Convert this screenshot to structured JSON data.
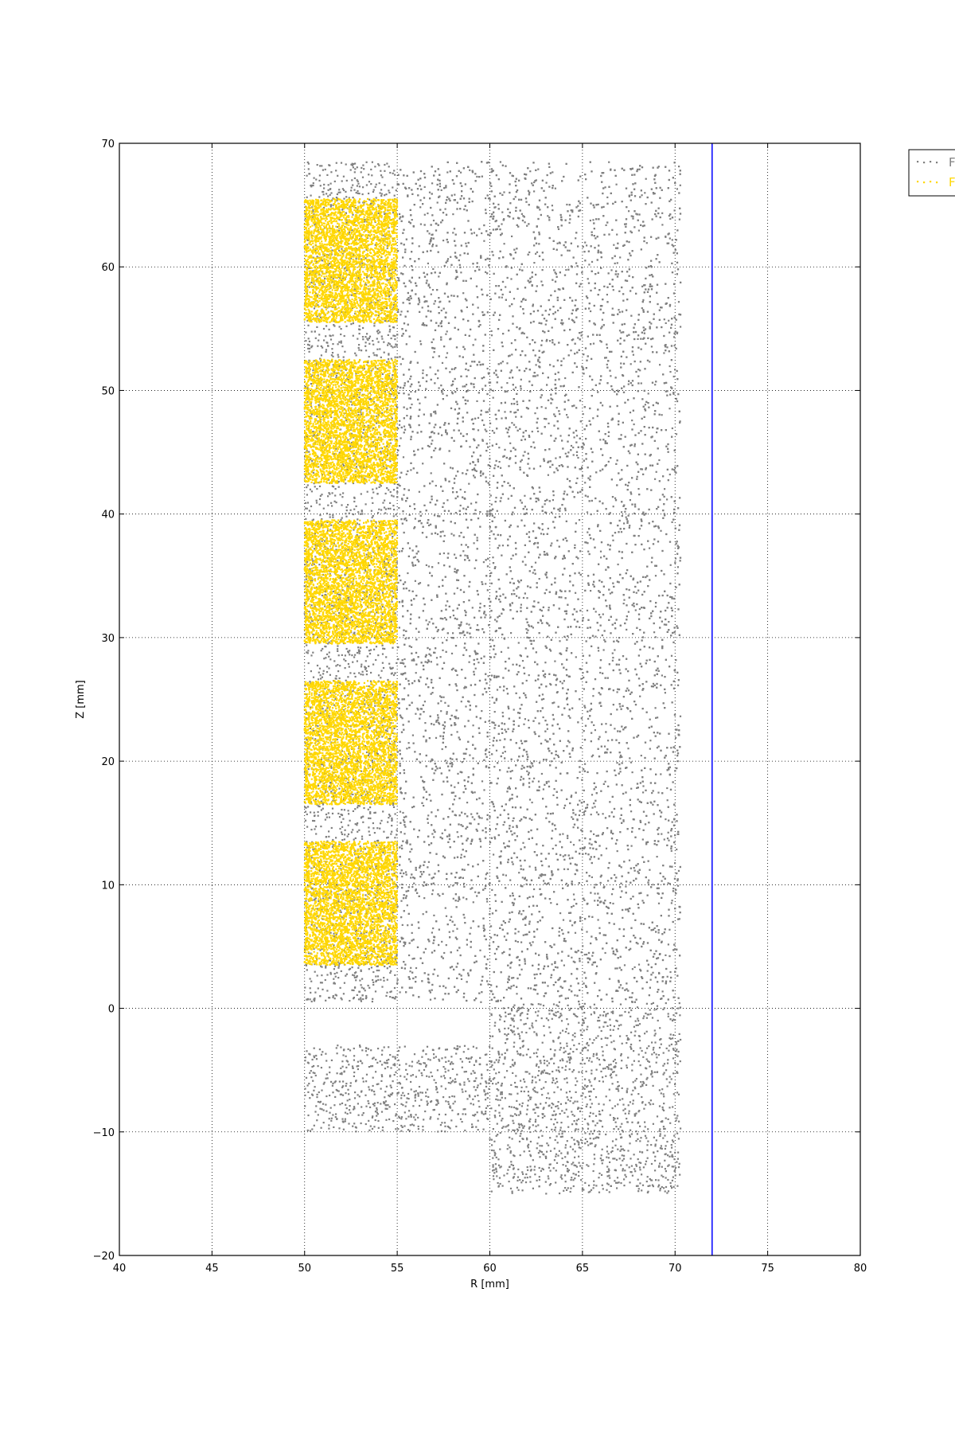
{
  "chart_data": {
    "type": "scatter",
    "title": "",
    "xlabel": "R [mm]",
    "ylabel": "Z [mm]",
    "xlim": [
      40,
      80
    ],
    "ylim": [
      -20,
      70
    ],
    "xticks": [
      40,
      45,
      50,
      55,
      60,
      65,
      70,
      75,
      80
    ],
    "yticks": [
      -20,
      -10,
      0,
      10,
      20,
      30,
      40,
      50,
      60,
      70
    ],
    "grid": true,
    "legend_position": "outside-top-right",
    "vertical_line": {
      "x": 72,
      "color": "#0000ff"
    },
    "series": [
      {
        "name": "F",
        "color": "#808080",
        "marker": "small square points",
        "regions": [
          {
            "r": [
              50,
              55
            ],
            "z": [
              0.5,
              68.5
            ],
            "density": "sparse"
          },
          {
            "r": [
              55,
              70.3
            ],
            "z": [
              0.5,
              68.5
            ],
            "density": "sparse"
          },
          {
            "r": [
              60,
              70.3
            ],
            "z": [
              -15,
              0.5
            ],
            "density": "sparse"
          },
          {
            "r": [
              50,
              60
            ],
            "z": [
              -10,
              -3
            ],
            "density": "sparse"
          }
        ]
      },
      {
        "name": "F",
        "color": "#ffd700",
        "marker": "small points",
        "regions": [
          {
            "r": [
              50,
              55
            ],
            "z": [
              55.5,
              65.5
            ],
            "density": "dense"
          },
          {
            "r": [
              50,
              55
            ],
            "z": [
              42.5,
              52.5
            ],
            "density": "dense"
          },
          {
            "r": [
              50,
              55
            ],
            "z": [
              29.5,
              39.5
            ],
            "density": "dense"
          },
          {
            "r": [
              50,
              55
            ],
            "z": [
              16.5,
              26.5
            ],
            "density": "dense"
          },
          {
            "r": [
              50,
              55
            ],
            "z": [
              3.5,
              13.5
            ],
            "density": "dense"
          }
        ]
      }
    ]
  }
}
